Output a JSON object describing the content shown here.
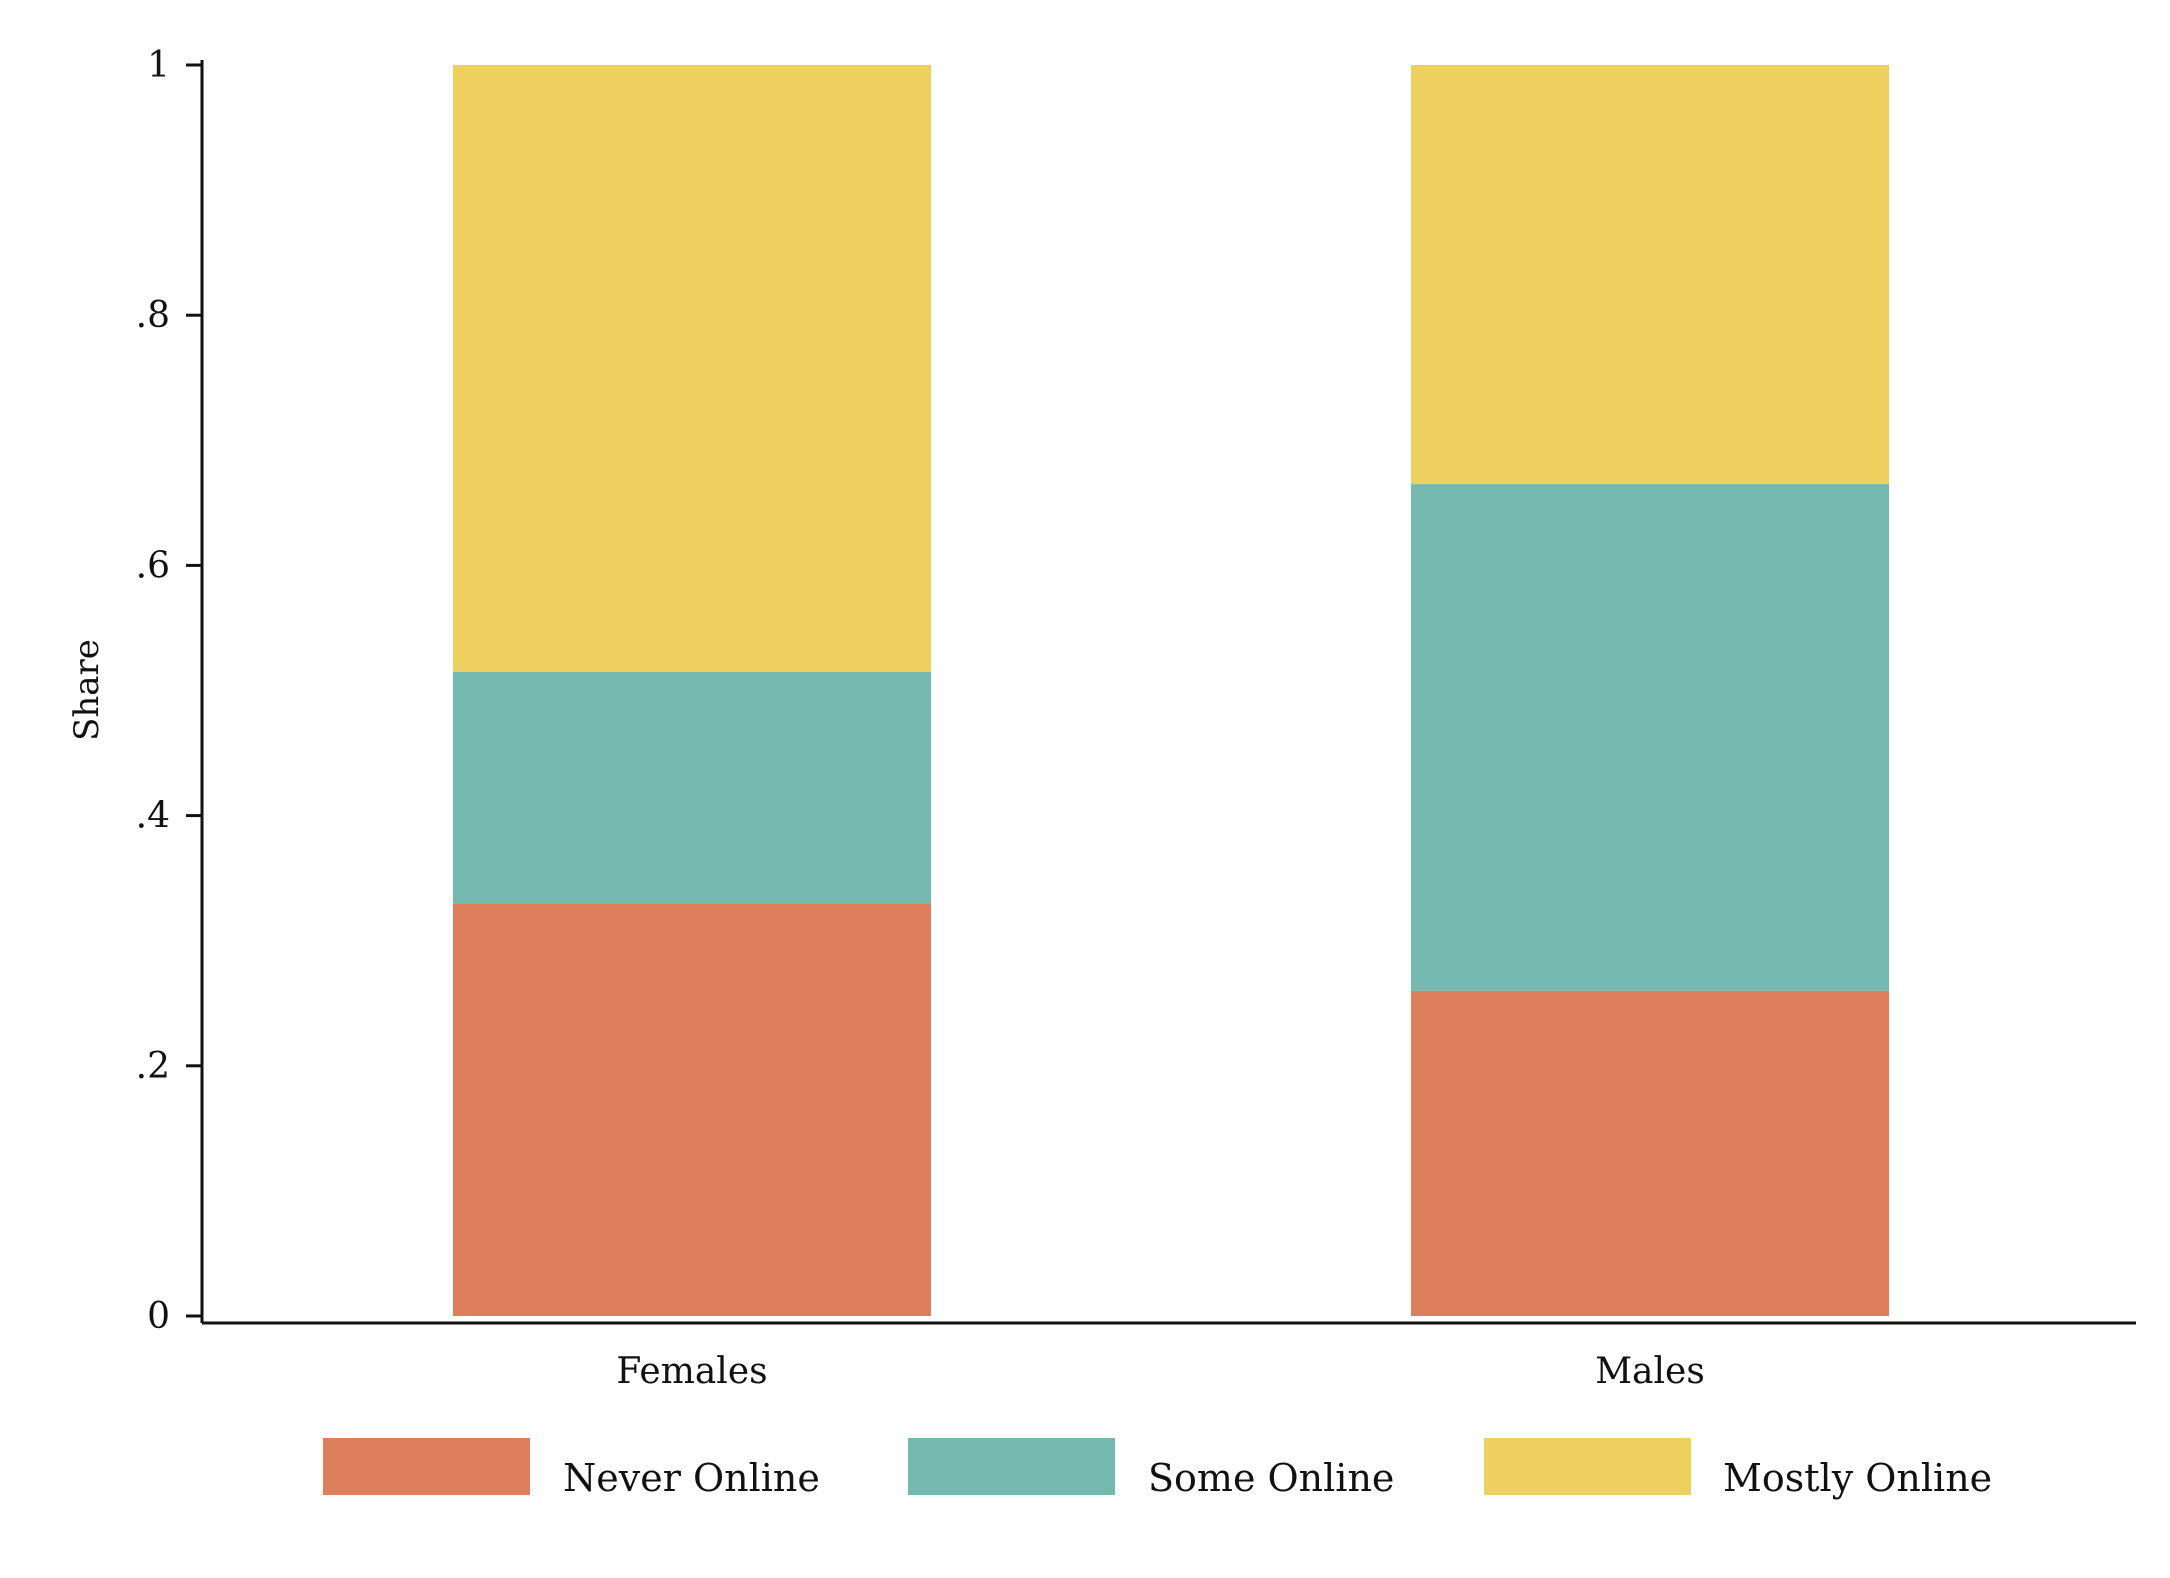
{
  "chart_data": {
    "type": "bar",
    "stacked": true,
    "categories": [
      "Females",
      "Males"
    ],
    "series": [
      {
        "name": "Never Online",
        "color": "#DD7F5C",
        "values": [
          0.33,
          0.26
        ]
      },
      {
        "name": "Some Online",
        "color": "#73B9B0",
        "values": [
          0.185,
          0.405
        ]
      },
      {
        "name": "Mostly Online",
        "color": "#EED05F",
        "values": [
          0.485,
          0.335
        ]
      }
    ],
    "title": "",
    "xlabel": "",
    "ylabel": "Share",
    "ylim": [
      0,
      1
    ],
    "yticks": [
      0,
      0.2,
      0.4,
      0.6,
      0.8,
      1
    ],
    "ytick_labels": [
      "0",
      ".2",
      ".4",
      ".6",
      ".8",
      "1"
    ],
    "grid": false,
    "legend_position": "bottom"
  }
}
